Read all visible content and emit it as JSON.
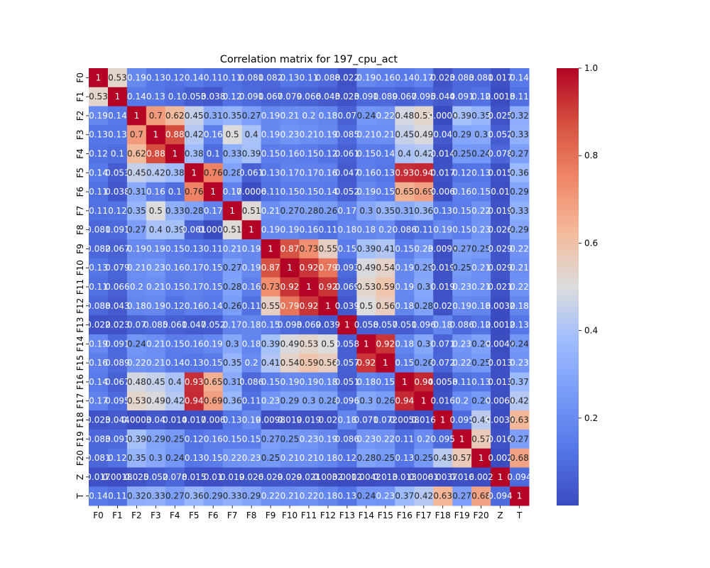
{
  "chart_data": {
    "type": "heatmap",
    "title": "Correlation matrix for 197_cpu_act",
    "xlabel": "",
    "ylabel": "",
    "labels": [
      "F0",
      "F1",
      "F2",
      "F3",
      "F4",
      "F5",
      "F6",
      "F7",
      "F8",
      "F9",
      "F10",
      "F11",
      "F12",
      "F13",
      "F14",
      "F15",
      "F16",
      "F17",
      "F18",
      "F19",
      "F20",
      "Z",
      "T"
    ],
    "colormap": "coolwarm",
    "color_range": [
      0.0,
      1.0
    ],
    "colorbar_ticks": [
      "0.2",
      "0.4",
      "0.6",
      "0.8",
      "1.0"
    ],
    "colorbar_tick_values": [
      0.2,
      0.4,
      0.6,
      0.8,
      1.0
    ],
    "colors": {
      "low": "#3b4cc0",
      "mid": "#dddcdc",
      "high": "#b40426"
    },
    "matrix": [
      [
        1,
        0.53,
        0.19,
        0.13,
        0.12,
        0.14,
        0.11,
        0.11,
        0.081,
        0.082,
        0.13,
        0.11,
        0.088,
        0.022,
        0.19,
        0.16,
        0.14,
        0.17,
        0.023,
        0.083,
        0.081,
        0.017,
        0.14
      ],
      [
        0.53,
        1,
        0.14,
        0.13,
        0.1,
        0.053,
        0.038,
        0.12,
        0.091,
        0.067,
        0.079,
        0.066,
        0.043,
        0.023,
        0.091,
        0.089,
        0.067,
        0.095,
        0.044,
        0.091,
        0.12,
        0.0018,
        0.11
      ],
      [
        0.19,
        0.14,
        1,
        0.7,
        0.62,
        0.45,
        0.31,
        0.35,
        0.27,
        0.19,
        0.21,
        0.2,
        0.18,
        0.07,
        0.24,
        0.22,
        0.48,
        0.53,
        0.0003,
        0.39,
        0.35,
        0.025,
        0.32
      ],
      [
        0.13,
        0.13,
        0.7,
        1,
        0.88,
        0.42,
        0.16,
        0.5,
        0.4,
        0.19,
        0.23,
        0.21,
        0.19,
        0.085,
        0.21,
        0.21,
        0.45,
        0.49,
        0.04,
        0.29,
        0.3,
        0.052,
        0.33
      ],
      [
        0.12,
        0.1,
        0.62,
        0.88,
        1,
        0.38,
        0.1,
        0.33,
        0.39,
        0.15,
        0.16,
        0.15,
        0.12,
        0.061,
        0.15,
        0.14,
        0.4,
        0.42,
        0.014,
        0.25,
        0.24,
        0.078,
        0.27
      ],
      [
        0.14,
        0.053,
        0.45,
        0.42,
        0.38,
        1,
        0.76,
        0.28,
        0.061,
        0.13,
        0.17,
        0.17,
        0.16,
        0.047,
        0.16,
        0.13,
        0.93,
        0.94,
        0.017,
        0.12,
        0.13,
        0.015,
        0.36
      ],
      [
        0.11,
        0.038,
        0.31,
        0.16,
        0.1,
        0.76,
        1,
        0.17,
        0.0006,
        0.11,
        0.15,
        0.15,
        0.14,
        0.052,
        0.19,
        0.15,
        0.65,
        0.69,
        0.006,
        0.16,
        0.15,
        0.01,
        0.29
      ],
      [
        0.11,
        0.12,
        0.35,
        0.5,
        0.33,
        0.28,
        0.17,
        1,
        0.51,
        0.21,
        0.27,
        0.28,
        0.26,
        0.17,
        0.3,
        0.35,
        0.31,
        0.36,
        0.13,
        0.15,
        0.22,
        0.019,
        0.33
      ],
      [
        0.081,
        0.091,
        0.27,
        0.4,
        0.39,
        0.061,
        0.0006,
        0.51,
        1,
        0.19,
        0.19,
        0.16,
        0.11,
        0.18,
        0.18,
        0.2,
        0.086,
        0.11,
        0.19,
        0.15,
        0.23,
        0.026,
        0.29
      ],
      [
        0.082,
        0.067,
        0.19,
        0.19,
        0.15,
        0.13,
        0.11,
        0.21,
        0.19,
        1,
        0.87,
        0.73,
        0.55,
        0.15,
        0.39,
        0.41,
        0.15,
        0.23,
        0.0098,
        0.27,
        0.25,
        0.029,
        0.22
      ],
      [
        0.13,
        0.079,
        0.21,
        0.23,
        0.16,
        0.17,
        0.15,
        0.27,
        0.19,
        0.87,
        1,
        0.92,
        0.79,
        0.093,
        0.49,
        0.54,
        0.19,
        0.29,
        0.019,
        0.25,
        0.21,
        0.029,
        0.21
      ],
      [
        0.11,
        0.066,
        0.2,
        0.21,
        0.15,
        0.17,
        0.15,
        0.28,
        0.16,
        0.73,
        0.92,
        1,
        0.92,
        0.069,
        0.53,
        0.59,
        0.19,
        0.3,
        0.019,
        0.23,
        0.21,
        0.021,
        0.22
      ],
      [
        0.088,
        0.043,
        0.18,
        0.19,
        0.12,
        0.16,
        0.14,
        0.26,
        0.11,
        0.55,
        0.79,
        0.92,
        1,
        0.039,
        0.5,
        0.56,
        0.18,
        0.28,
        0.02,
        0.19,
        0.18,
        0.0032,
        0.18
      ],
      [
        0.022,
        0.023,
        0.07,
        0.085,
        0.061,
        0.047,
        0.052,
        0.17,
        0.18,
        0.15,
        0.093,
        0.069,
        0.039,
        1,
        0.058,
        0.057,
        0.051,
        0.096,
        0.18,
        0.086,
        0.12,
        0.0012,
        0.13
      ],
      [
        0.19,
        0.091,
        0.24,
        0.21,
        0.15,
        0.16,
        0.19,
        0.3,
        0.18,
        0.39,
        0.49,
        0.53,
        0.5,
        0.058,
        1,
        0.92,
        0.18,
        0.3,
        0.071,
        0.23,
        0.28,
        0.0042,
        0.24
      ],
      [
        0.16,
        0.089,
        0.22,
        0.21,
        0.14,
        0.13,
        0.15,
        0.35,
        0.2,
        0.41,
        0.54,
        0.59,
        0.56,
        0.057,
        0.92,
        1,
        0.15,
        0.26,
        0.072,
        0.22,
        0.25,
        0.013,
        0.23
      ],
      [
        0.14,
        0.067,
        0.48,
        0.45,
        0.4,
        0.93,
        0.65,
        0.31,
        0.086,
        0.15,
        0.19,
        0.19,
        0.18,
        0.051,
        0.18,
        0.15,
        1,
        0.94,
        0.0058,
        0.11,
        0.13,
        0.013,
        0.37
      ],
      [
        0.17,
        0.095,
        0.53,
        0.49,
        0.42,
        0.94,
        0.69,
        0.36,
        0.11,
        0.23,
        0.29,
        0.3,
        0.28,
        0.096,
        0.3,
        0.26,
        0.94,
        1,
        0.016,
        0.2,
        0.25,
        0.0061,
        0.42
      ],
      [
        0.023,
        0.044,
        0.0003,
        0.04,
        0.014,
        0.017,
        0.006,
        0.13,
        0.19,
        0.0098,
        0.019,
        0.019,
        0.02,
        0.18,
        0.071,
        0.072,
        0.0058,
        0.016,
        1,
        0.095,
        0.43,
        0.0037,
        0.63
      ],
      [
        0.083,
        0.091,
        0.39,
        0.29,
        0.25,
        0.12,
        0.16,
        0.15,
        0.15,
        0.27,
        0.25,
        0.23,
        0.19,
        0.086,
        0.23,
        0.22,
        0.11,
        0.2,
        0.095,
        1,
        0.57,
        0.016,
        0.27
      ],
      [
        0.081,
        0.12,
        0.35,
        0.3,
        0.24,
        0.13,
        0.15,
        0.22,
        0.23,
        0.25,
        0.21,
        0.21,
        0.18,
        0.12,
        0.28,
        0.25,
        0.13,
        0.25,
        0.43,
        0.57,
        1,
        0.002,
        0.68
      ],
      [
        0.017,
        0.0018,
        0.025,
        0.052,
        0.078,
        0.015,
        0.01,
        0.019,
        0.026,
        0.029,
        0.029,
        0.021,
        0.0032,
        0.0012,
        0.0042,
        0.013,
        0.013,
        0.0061,
        0.0037,
        0.016,
        0.002,
        1,
        0.094
      ],
      [
        0.14,
        0.11,
        0.32,
        0.33,
        0.27,
        0.36,
        0.29,
        0.33,
        0.29,
        0.22,
        0.21,
        0.22,
        0.18,
        0.13,
        0.24,
        0.23,
        0.37,
        0.42,
        0.63,
        0.27,
        0.68,
        0.094,
        1
      ]
    ]
  }
}
